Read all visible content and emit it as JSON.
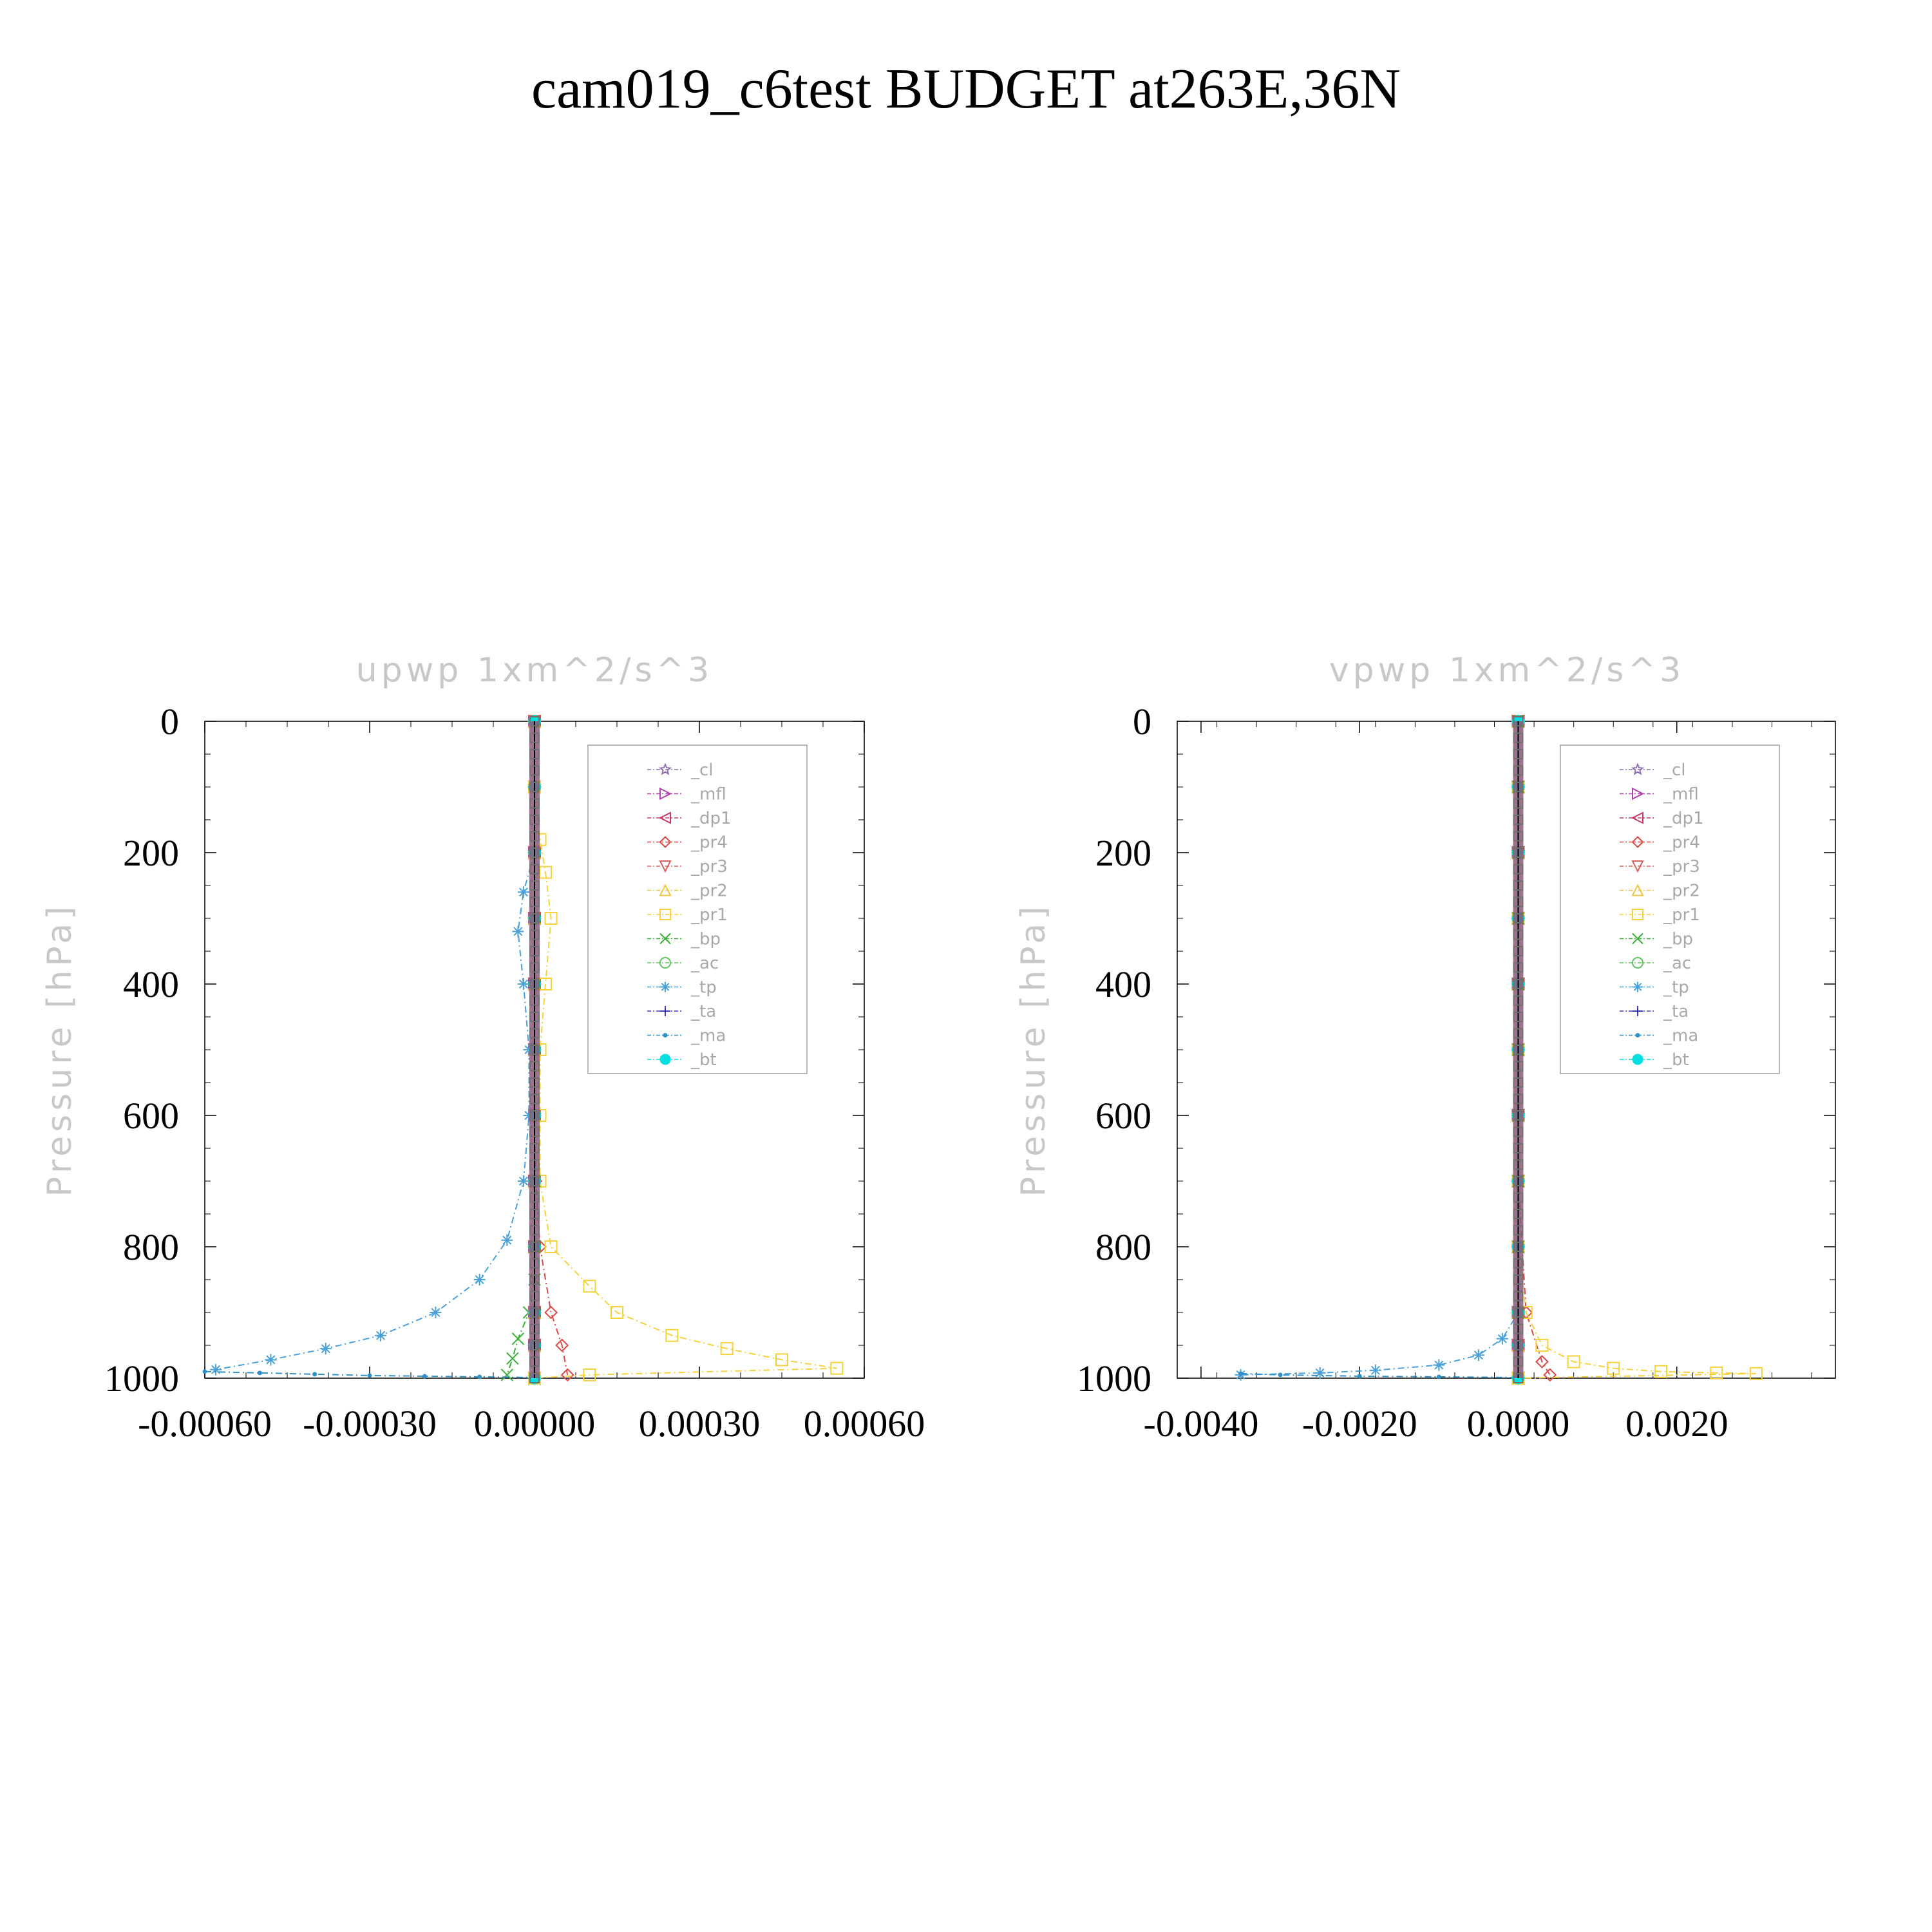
{
  "figure_title": "cam019_c6test  BUDGET at263E,36N",
  "chart_data": [
    {
      "type": "line",
      "title": "upwp   1xm^2/s^3",
      "ylabel": "Pressure [hPa]",
      "xlabel": "",
      "xlim": [
        -0.0006,
        0.0006
      ],
      "ylim": [
        1000,
        0
      ],
      "y_inverted": true,
      "xticks": [
        "-0.00060",
        "-0.00030",
        "0.00000",
        "0.00030",
        "0.00060"
      ],
      "xtick_values": [
        -0.0006,
        -0.0003,
        0.0,
        0.0003,
        0.0006
      ],
      "yticks": [
        "0",
        "200",
        "400",
        "600",
        "800",
        "1000"
      ],
      "ytick_values": [
        0,
        200,
        400,
        600,
        800,
        1000
      ],
      "legend_position": "top-right",
      "series": [
        {
          "name": "_cl",
          "color": "#8e6fb0",
          "marker": "star",
          "x": [
            0,
            0,
            0,
            0,
            0,
            0,
            0,
            0,
            0,
            0,
            0,
            0
          ],
          "y": [
            0,
            100,
            200,
            300,
            400,
            500,
            600,
            700,
            800,
            900,
            950,
            1000
          ]
        },
        {
          "name": "_mfl",
          "color": "#b040b0",
          "marker": "triangle-right",
          "x": [
            0,
            0,
            0,
            0,
            0,
            0,
            0,
            0,
            0,
            0,
            0,
            0
          ],
          "y": [
            0,
            100,
            200,
            300,
            400,
            500,
            600,
            700,
            800,
            900,
            950,
            1000
          ]
        },
        {
          "name": "_dp1",
          "color": "#c8386e",
          "marker": "triangle-left",
          "x": [
            0,
            0,
            0,
            0,
            0,
            0,
            0,
            0,
            0,
            0,
            0,
            0
          ],
          "y": [
            0,
            100,
            200,
            300,
            400,
            500,
            600,
            700,
            800,
            900,
            950,
            1000
          ]
        },
        {
          "name": "_pr4",
          "color": "#d84848",
          "marker": "diamond",
          "x": [
            0,
            0,
            0,
            0,
            0,
            0,
            0,
            2e-06,
            1e-05,
            3e-05,
            5e-05,
            6e-05
          ],
          "y": [
            0,
            100,
            200,
            300,
            400,
            500,
            600,
            700,
            800,
            900,
            950,
            995
          ]
        },
        {
          "name": "_pr3",
          "color": "#d86060",
          "marker": "triangle-down",
          "x": [
            0,
            0,
            0,
            0,
            0,
            0,
            0,
            0,
            0,
            0,
            0,
            0
          ],
          "y": [
            0,
            100,
            200,
            300,
            400,
            500,
            600,
            700,
            800,
            900,
            950,
            1000
          ]
        },
        {
          "name": "_pr2",
          "color": "#f0c840",
          "marker": "triangle-up",
          "x": [
            0,
            0,
            0,
            0,
            0,
            0,
            0,
            0,
            0,
            0,
            0,
            0
          ],
          "y": [
            0,
            100,
            200,
            300,
            400,
            500,
            600,
            700,
            800,
            900,
            950,
            1000
          ]
        },
        {
          "name": "_pr1",
          "color": "#f5d23c",
          "marker": "square",
          "x": [
            0,
            1e-05,
            2e-05,
            3e-05,
            2e-05,
            1e-05,
            1e-05,
            1e-05,
            3e-05,
            0.0001,
            0.00015,
            0.00025,
            0.00035,
            0.00045,
            0.00055,
            0.0001,
            0.0
          ],
          "y": [
            100,
            180,
            230,
            300,
            400,
            500,
            600,
            700,
            800,
            860,
            900,
            935,
            955,
            972,
            985,
            995,
            1000
          ]
        },
        {
          "name": "_bp",
          "color": "#38b038",
          "marker": "x",
          "x": [
            0,
            0,
            0,
            -1e-05,
            -3e-05,
            -4e-05,
            -5e-05
          ],
          "y": [
            700,
            800,
            850,
            900,
            940,
            970,
            995
          ]
        },
        {
          "name": "_ac",
          "color": "#60c060",
          "marker": "circle",
          "x": [
            0,
            0,
            0,
            0,
            0,
            0,
            0,
            0,
            0,
            0
          ],
          "y": [
            0,
            100,
            200,
            300,
            400,
            500,
            600,
            700,
            800,
            900
          ]
        },
        {
          "name": "_tp",
          "color": "#4aa0d8",
          "marker": "asterisk",
          "x": [
            0,
            -2e-05,
            -3e-05,
            -2e-05,
            -1e-05,
            -1e-05,
            -2e-05,
            -5e-05,
            -0.0001,
            -0.00018,
            -0.00028,
            -0.00038,
            -0.00048,
            -0.00058
          ],
          "y": [
            200,
            260,
            320,
            400,
            500,
            600,
            700,
            790,
            850,
            900,
            935,
            955,
            972,
            987
          ]
        },
        {
          "name": "_ta",
          "color": "#3c3cb4",
          "marker": "plus",
          "x": [
            0,
            0,
            0,
            0,
            0,
            0,
            0,
            0,
            0,
            0,
            0,
            0
          ],
          "y": [
            0,
            100,
            200,
            300,
            400,
            500,
            600,
            700,
            800,
            900,
            950,
            1000
          ]
        },
        {
          "name": "_ma",
          "color": "#3090c8",
          "marker": "dot",
          "x": [
            -0.0006,
            -0.0005,
            -0.0004,
            -0.0003,
            -0.0002,
            -0.0001,
            0
          ],
          "y": [
            990,
            992,
            994,
            996,
            997,
            998,
            999
          ]
        },
        {
          "name": "_bt",
          "color": "#00e0e0",
          "marker": "filled-circle",
          "x": [
            0,
            0,
            0,
            0,
            0,
            0,
            0,
            0,
            0,
            0,
            0,
            0
          ],
          "y": [
            0,
            100,
            200,
            300,
            400,
            500,
            600,
            700,
            800,
            900,
            950,
            1000
          ]
        }
      ]
    },
    {
      "type": "line",
      "title": "vpwp   1xm^2/s^3",
      "ylabel": "Pressure [hPa]",
      "xlabel": "",
      "xlim": [
        -0.0043,
        0.004
      ],
      "ylim": [
        1000,
        0
      ],
      "y_inverted": true,
      "xticks": [
        "-0.0040",
        "-0.0020",
        "0.0000",
        "0.0020"
      ],
      "xtick_values": [
        -0.004,
        -0.002,
        0.0,
        0.002
      ],
      "yticks": [
        "0",
        "200",
        "400",
        "600",
        "800",
        "1000"
      ],
      "ytick_values": [
        0,
        200,
        400,
        600,
        800,
        1000
      ],
      "legend_position": "top-right",
      "series": [
        {
          "name": "_cl",
          "color": "#8e6fb0",
          "marker": "star",
          "x": [
            0,
            0,
            0,
            0,
            0,
            0,
            0,
            0,
            0,
            0,
            0,
            0
          ],
          "y": [
            0,
            100,
            200,
            300,
            400,
            500,
            600,
            700,
            800,
            900,
            950,
            1000
          ]
        },
        {
          "name": "_mfl",
          "color": "#b040b0",
          "marker": "triangle-right",
          "x": [
            0,
            0,
            0,
            0,
            0,
            0,
            0,
            0,
            0,
            0,
            0,
            0
          ],
          "y": [
            0,
            100,
            200,
            300,
            400,
            500,
            600,
            700,
            800,
            900,
            950,
            1000
          ]
        },
        {
          "name": "_dp1",
          "color": "#c8386e",
          "marker": "triangle-left",
          "x": [
            0,
            0,
            0,
            0,
            0,
            0,
            0,
            0,
            0,
            0,
            0,
            0
          ],
          "y": [
            0,
            100,
            200,
            300,
            400,
            500,
            600,
            700,
            800,
            900,
            950,
            1000
          ]
        },
        {
          "name": "_pr4",
          "color": "#d84848",
          "marker": "diamond",
          "x": [
            0,
            0,
            0,
            0,
            0,
            0,
            0,
            0,
            0.0001,
            0.0003,
            0.0004
          ],
          "y": [
            0,
            100,
            200,
            300,
            400,
            500,
            600,
            700,
            900,
            975,
            995
          ]
        },
        {
          "name": "_pr3",
          "color": "#d86060",
          "marker": "triangle-down",
          "x": [
            0,
            0,
            0,
            0,
            0,
            0,
            0,
            0,
            0,
            0,
            0,
            0
          ],
          "y": [
            0,
            100,
            200,
            300,
            400,
            500,
            600,
            700,
            800,
            900,
            950,
            1000
          ]
        },
        {
          "name": "_pr2",
          "color": "#f0c840",
          "marker": "triangle-up",
          "x": [
            0,
            0,
            0,
            0,
            0,
            0,
            0,
            0,
            0,
            0,
            0,
            0
          ],
          "y": [
            0,
            100,
            200,
            300,
            400,
            500,
            600,
            700,
            800,
            900,
            950,
            1000
          ]
        },
        {
          "name": "_pr1",
          "color": "#f5d23c",
          "marker": "square",
          "x": [
            0,
            0,
            0,
            0,
            0,
            0.0001,
            0.0003,
            0.0007,
            0.0012,
            0.0018,
            0.0025,
            0.003,
            0.0
          ],
          "y": [
            100,
            300,
            500,
            700,
            800,
            900,
            950,
            975,
            985,
            990,
            992,
            993,
            1000
          ]
        },
        {
          "name": "_bp",
          "color": "#38b038",
          "marker": "x",
          "x": [
            0,
            0,
            0,
            0,
            0,
            0,
            0,
            0,
            0,
            0
          ],
          "y": [
            0,
            100,
            200,
            300,
            400,
            500,
            600,
            700,
            800,
            900
          ]
        },
        {
          "name": "_ac",
          "color": "#60c060",
          "marker": "circle",
          "x": [
            0,
            0,
            0,
            0,
            0,
            0,
            0,
            0,
            0,
            0
          ],
          "y": [
            0,
            100,
            200,
            300,
            400,
            500,
            600,
            700,
            800,
            900
          ]
        },
        {
          "name": "_tp",
          "color": "#4aa0d8",
          "marker": "asterisk",
          "x": [
            0,
            0,
            0,
            0,
            0,
            -0.0002,
            -0.0005,
            -0.001,
            -0.0018,
            -0.0025,
            -0.0035
          ],
          "y": [
            200,
            400,
            600,
            800,
            900,
            940,
            965,
            980,
            988,
            992,
            995
          ]
        },
        {
          "name": "_ta",
          "color": "#3c3cb4",
          "marker": "plus",
          "x": [
            0,
            0,
            0,
            0,
            0,
            0,
            0,
            0,
            0,
            0,
            0,
            0
          ],
          "y": [
            0,
            100,
            200,
            300,
            400,
            500,
            600,
            700,
            800,
            900,
            950,
            1000
          ]
        },
        {
          "name": "_ma",
          "color": "#3090c8",
          "marker": "dot",
          "x": [
            -0.0035,
            -0.003,
            -0.002,
            -0.001,
            0
          ],
          "y": [
            993,
            995,
            997,
            998,
            999
          ]
        },
        {
          "name": "_bt",
          "color": "#00e0e0",
          "marker": "filled-circle",
          "x": [
            0,
            0,
            0,
            0,
            0,
            0,
            0,
            0,
            0,
            0,
            0,
            0
          ],
          "y": [
            0,
            100,
            200,
            300,
            400,
            500,
            600,
            700,
            800,
            900,
            950,
            1000
          ]
        }
      ]
    }
  ]
}
